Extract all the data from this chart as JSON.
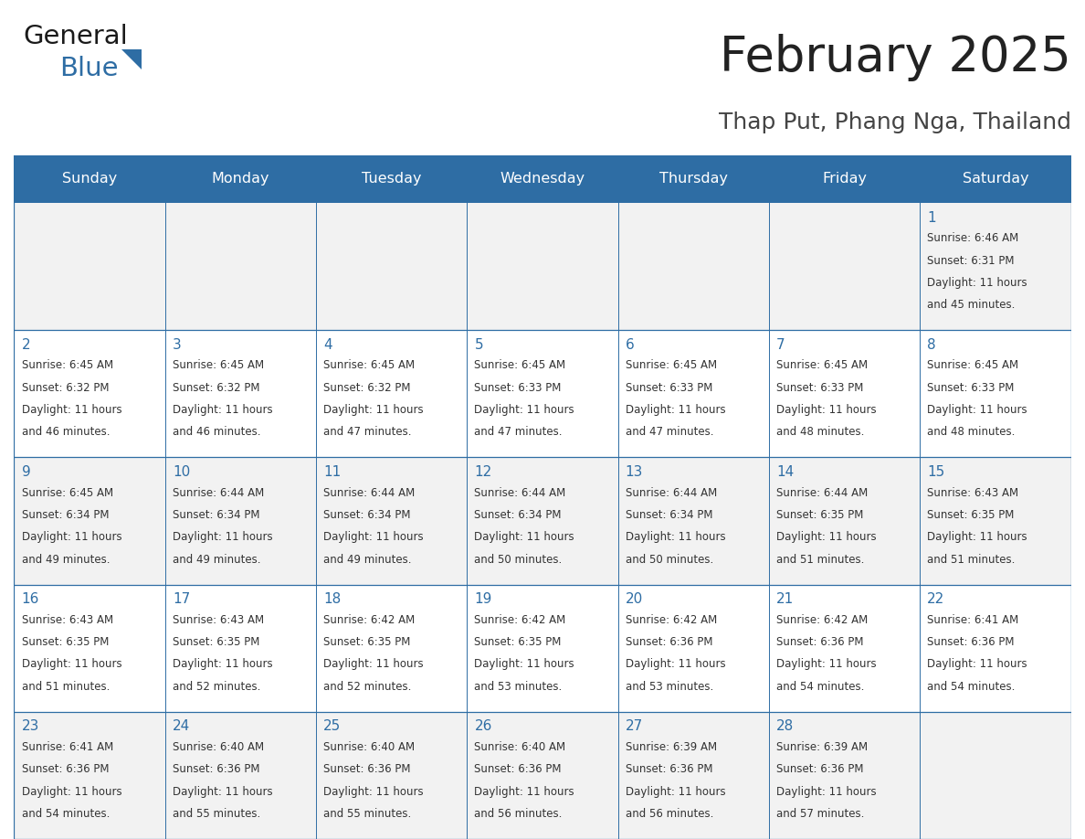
{
  "title": "February 2025",
  "subtitle": "Thap Put, Phang Nga, Thailand",
  "header_bg": "#2E6DA4",
  "header_text_color": "#FFFFFF",
  "cell_bg_odd": "#F2F2F2",
  "cell_bg_even": "#FFFFFF",
  "border_color": "#2E6DA4",
  "title_color": "#222222",
  "subtitle_color": "#444444",
  "day_number_color": "#2E6DA4",
  "cell_text_color": "#333333",
  "days_of_week": [
    "Sunday",
    "Monday",
    "Tuesday",
    "Wednesday",
    "Thursday",
    "Friday",
    "Saturday"
  ],
  "weeks": [
    [
      null,
      null,
      null,
      null,
      null,
      null,
      1
    ],
    [
      2,
      3,
      4,
      5,
      6,
      7,
      8
    ],
    [
      9,
      10,
      11,
      12,
      13,
      14,
      15
    ],
    [
      16,
      17,
      18,
      19,
      20,
      21,
      22
    ],
    [
      23,
      24,
      25,
      26,
      27,
      28,
      null
    ]
  ],
  "calendar_data": {
    "1": {
      "sunrise": "6:46 AM",
      "sunset": "6:31 PM",
      "daylight_hours": 11,
      "daylight_minutes": 45
    },
    "2": {
      "sunrise": "6:45 AM",
      "sunset": "6:32 PM",
      "daylight_hours": 11,
      "daylight_minutes": 46
    },
    "3": {
      "sunrise": "6:45 AM",
      "sunset": "6:32 PM",
      "daylight_hours": 11,
      "daylight_minutes": 46
    },
    "4": {
      "sunrise": "6:45 AM",
      "sunset": "6:32 PM",
      "daylight_hours": 11,
      "daylight_minutes": 47
    },
    "5": {
      "sunrise": "6:45 AM",
      "sunset": "6:33 PM",
      "daylight_hours": 11,
      "daylight_minutes": 47
    },
    "6": {
      "sunrise": "6:45 AM",
      "sunset": "6:33 PM",
      "daylight_hours": 11,
      "daylight_minutes": 47
    },
    "7": {
      "sunrise": "6:45 AM",
      "sunset": "6:33 PM",
      "daylight_hours": 11,
      "daylight_minutes": 48
    },
    "8": {
      "sunrise": "6:45 AM",
      "sunset": "6:33 PM",
      "daylight_hours": 11,
      "daylight_minutes": 48
    },
    "9": {
      "sunrise": "6:45 AM",
      "sunset": "6:34 PM",
      "daylight_hours": 11,
      "daylight_minutes": 49
    },
    "10": {
      "sunrise": "6:44 AM",
      "sunset": "6:34 PM",
      "daylight_hours": 11,
      "daylight_minutes": 49
    },
    "11": {
      "sunrise": "6:44 AM",
      "sunset": "6:34 PM",
      "daylight_hours": 11,
      "daylight_minutes": 49
    },
    "12": {
      "sunrise": "6:44 AM",
      "sunset": "6:34 PM",
      "daylight_hours": 11,
      "daylight_minutes": 50
    },
    "13": {
      "sunrise": "6:44 AM",
      "sunset": "6:34 PM",
      "daylight_hours": 11,
      "daylight_minutes": 50
    },
    "14": {
      "sunrise": "6:44 AM",
      "sunset": "6:35 PM",
      "daylight_hours": 11,
      "daylight_minutes": 51
    },
    "15": {
      "sunrise": "6:43 AM",
      "sunset": "6:35 PM",
      "daylight_hours": 11,
      "daylight_minutes": 51
    },
    "16": {
      "sunrise": "6:43 AM",
      "sunset": "6:35 PM",
      "daylight_hours": 11,
      "daylight_minutes": 51
    },
    "17": {
      "sunrise": "6:43 AM",
      "sunset": "6:35 PM",
      "daylight_hours": 11,
      "daylight_minutes": 52
    },
    "18": {
      "sunrise": "6:42 AM",
      "sunset": "6:35 PM",
      "daylight_hours": 11,
      "daylight_minutes": 52
    },
    "19": {
      "sunrise": "6:42 AM",
      "sunset": "6:35 PM",
      "daylight_hours": 11,
      "daylight_minutes": 53
    },
    "20": {
      "sunrise": "6:42 AM",
      "sunset": "6:36 PM",
      "daylight_hours": 11,
      "daylight_minutes": 53
    },
    "21": {
      "sunrise": "6:42 AM",
      "sunset": "6:36 PM",
      "daylight_hours": 11,
      "daylight_minutes": 54
    },
    "22": {
      "sunrise": "6:41 AM",
      "sunset": "6:36 PM",
      "daylight_hours": 11,
      "daylight_minutes": 54
    },
    "23": {
      "sunrise": "6:41 AM",
      "sunset": "6:36 PM",
      "daylight_hours": 11,
      "daylight_minutes": 54
    },
    "24": {
      "sunrise": "6:40 AM",
      "sunset": "6:36 PM",
      "daylight_hours": 11,
      "daylight_minutes": 55
    },
    "25": {
      "sunrise": "6:40 AM",
      "sunset": "6:36 PM",
      "daylight_hours": 11,
      "daylight_minutes": 55
    },
    "26": {
      "sunrise": "6:40 AM",
      "sunset": "6:36 PM",
      "daylight_hours": 11,
      "daylight_minutes": 56
    },
    "27": {
      "sunrise": "6:39 AM",
      "sunset": "6:36 PM",
      "daylight_hours": 11,
      "daylight_minutes": 56
    },
    "28": {
      "sunrise": "6:39 AM",
      "sunset": "6:36 PM",
      "daylight_hours": 11,
      "daylight_minutes": 57
    }
  },
  "figsize": [
    11.88,
    9.18
  ],
  "dpi": 100
}
